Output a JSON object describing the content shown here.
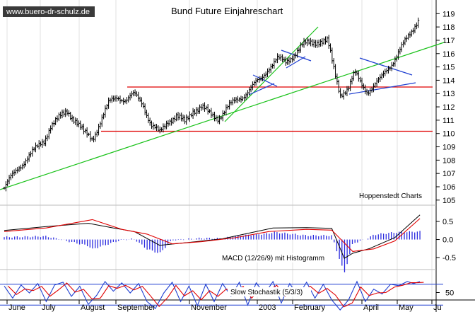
{
  "chart_data": {
    "type": "line",
    "title": "Bund Future Einjahreschart",
    "watermark": "www.buero-dr-schulz.de",
    "source": "Hoppenstedt Charts",
    "months": [
      "June",
      "July",
      "August",
      "September",
      "November",
      "2003",
      "February",
      "April",
      "May",
      "Ju"
    ],
    "price_panel": {
      "yticks": [
        105,
        106,
        107,
        108,
        109,
        110,
        111,
        112,
        113,
        114,
        115,
        116,
        117,
        118,
        119
      ],
      "ylim": [
        104.3,
        119.6
      ],
      "series": [
        {
          "x": 0,
          "y": 105.9
        },
        {
          "x": 1.5,
          "y": 106.6
        },
        {
          "x": 3.5,
          "y": 107.5
        },
        {
          "x": 5.5,
          "y": 108.2
        },
        {
          "x": 7.5,
          "y": 108.8
        },
        {
          "x": 9.5,
          "y": 109.5
        },
        {
          "x": 11,
          "y": 110.6
        },
        {
          "x": 13,
          "y": 111.1
        },
        {
          "x": 15,
          "y": 111.7
        },
        {
          "x": 17,
          "y": 111.0
        },
        {
          "x": 19,
          "y": 110.0
        },
        {
          "x": 21,
          "y": 109.6
        },
        {
          "x": 23,
          "y": 111.0
        },
        {
          "x": 25,
          "y": 112.3
        },
        {
          "x": 27,
          "y": 112.8
        },
        {
          "x": 29,
          "y": 112.5
        },
        {
          "x": 31,
          "y": 112.9
        },
        {
          "x": 33,
          "y": 112.3
        },
        {
          "x": 35,
          "y": 110.6
        },
        {
          "x": 37,
          "y": 110.0
        },
        {
          "x": 39,
          "y": 111.0
        },
        {
          "x": 41,
          "y": 111.3
        },
        {
          "x": 43,
          "y": 110.8
        },
        {
          "x": 45,
          "y": 111.8
        },
        {
          "x": 47,
          "y": 112.0
        },
        {
          "x": 49,
          "y": 111.4
        },
        {
          "x": 51,
          "y": 111.2
        },
        {
          "x": 53,
          "y": 111.9
        },
        {
          "x": 55,
          "y": 112.4
        },
        {
          "x": 57,
          "y": 112.9
        },
        {
          "x": 59,
          "y": 113.5
        },
        {
          "x": 61,
          "y": 114.0
        },
        {
          "x": 63,
          "y": 115.0
        },
        {
          "x": 65,
          "y": 115.6
        },
        {
          "x": 67,
          "y": 115.3
        },
        {
          "x": 69,
          "y": 116.0
        },
        {
          "x": 71,
          "y": 116.6
        },
        {
          "x": 73,
          "y": 116.8
        },
        {
          "x": 75,
          "y": 117.0
        },
        {
          "x": 77,
          "y": 116.9
        },
        {
          "x": 78.5,
          "y": 114.8
        },
        {
          "x": 80,
          "y": 113.0
        },
        {
          "x": 82,
          "y": 113.4
        },
        {
          "x": 83.5,
          "y": 114.5
        },
        {
          "x": 85,
          "y": 113.8
        },
        {
          "x": 86.5,
          "y": 113.2
        },
        {
          "x": 88,
          "y": 113.5
        },
        {
          "x": 89.5,
          "y": 114.0
        },
        {
          "x": 91,
          "y": 114.8
        },
        {
          "x": 93,
          "y": 115.6
        },
        {
          "x": 95,
          "y": 116.6
        },
        {
          "x": 97,
          "y": 117.7
        },
        {
          "x": 98.5,
          "y": 118.6
        }
      ]
    },
    "macd_panel": {
      "label": "MACD (12/26/9) mit Histogramm",
      "yticks": [
        0.5,
        0.0,
        -0.5
      ],
      "ylim": [
        -0.85,
        0.95
      ],
      "macd": [
        {
          "x": 0,
          "y": 0.25
        },
        {
          "x": 10,
          "y": 0.36
        },
        {
          "x": 20,
          "y": 0.45
        },
        {
          "x": 26,
          "y": 0.32
        },
        {
          "x": 31,
          "y": 0.22
        },
        {
          "x": 37,
          "y": -0.16
        },
        {
          "x": 44,
          "y": -0.08
        },
        {
          "x": 52,
          "y": 0.02
        },
        {
          "x": 58,
          "y": 0.17
        },
        {
          "x": 64,
          "y": 0.32
        },
        {
          "x": 72,
          "y": 0.33
        },
        {
          "x": 78,
          "y": 0.31
        },
        {
          "x": 81,
          "y": -0.52
        },
        {
          "x": 83,
          "y": -0.38
        },
        {
          "x": 87,
          "y": -0.25
        },
        {
          "x": 93,
          "y": 0.05
        },
        {
          "x": 99,
          "y": 0.68
        }
      ],
      "signal": [
        {
          "x": 0,
          "y": 0.22
        },
        {
          "x": 10,
          "y": 0.32
        },
        {
          "x": 21,
          "y": 0.55
        },
        {
          "x": 28,
          "y": 0.28
        },
        {
          "x": 34,
          "y": 0.15
        },
        {
          "x": 40,
          "y": -0.12
        },
        {
          "x": 47,
          "y": -0.06
        },
        {
          "x": 55,
          "y": 0.05
        },
        {
          "x": 63,
          "y": 0.22
        },
        {
          "x": 72,
          "y": 0.28
        },
        {
          "x": 78,
          "y": 0.26
        },
        {
          "x": 83,
          "y": -0.33
        },
        {
          "x": 88,
          "y": -0.26
        },
        {
          "x": 93,
          "y": -0.04
        },
        {
          "x": 99,
          "y": 0.58
        }
      ]
    },
    "stoch_panel": {
      "label": "Slow Stochastik (5/3/3)",
      "yticks": [
        50
      ],
      "ylim": [
        0,
        100
      ],
      "reference_lines": [
        80,
        20
      ],
      "k": [
        {
          "x": 0,
          "y": 75
        },
        {
          "x": 2,
          "y": 40
        },
        {
          "x": 4,
          "y": 78
        },
        {
          "x": 6,
          "y": 55
        },
        {
          "x": 8,
          "y": 82
        },
        {
          "x": 10,
          "y": 30
        },
        {
          "x": 12,
          "y": 78
        },
        {
          "x": 14,
          "y": 86
        },
        {
          "x": 16,
          "y": 45
        },
        {
          "x": 18,
          "y": 74
        },
        {
          "x": 20,
          "y": 22
        },
        {
          "x": 22,
          "y": 48
        },
        {
          "x": 24,
          "y": 88
        },
        {
          "x": 26,
          "y": 60
        },
        {
          "x": 28,
          "y": 84
        },
        {
          "x": 30,
          "y": 55
        },
        {
          "x": 32,
          "y": 82
        },
        {
          "x": 34,
          "y": 30
        },
        {
          "x": 36,
          "y": 10
        },
        {
          "x": 38,
          "y": 55
        },
        {
          "x": 40,
          "y": 86
        },
        {
          "x": 42,
          "y": 30
        },
        {
          "x": 44,
          "y": 75
        },
        {
          "x": 46,
          "y": 18
        },
        {
          "x": 48,
          "y": 80
        },
        {
          "x": 50,
          "y": 30
        },
        {
          "x": 52,
          "y": 82
        },
        {
          "x": 54,
          "y": 45
        },
        {
          "x": 56,
          "y": 86
        },
        {
          "x": 58,
          "y": 20
        },
        {
          "x": 60,
          "y": 84
        },
        {
          "x": 62,
          "y": 52
        },
        {
          "x": 64,
          "y": 88
        },
        {
          "x": 66,
          "y": 26
        },
        {
          "x": 68,
          "y": 82
        },
        {
          "x": 70,
          "y": 46
        },
        {
          "x": 72,
          "y": 86
        },
        {
          "x": 74,
          "y": 40
        },
        {
          "x": 76,
          "y": 80
        },
        {
          "x": 78,
          "y": 35
        },
        {
          "x": 80,
          "y": 6
        },
        {
          "x": 82,
          "y": 35
        },
        {
          "x": 84,
          "y": 88
        },
        {
          "x": 86,
          "y": 30
        },
        {
          "x": 88,
          "y": 66
        },
        {
          "x": 90,
          "y": 52
        },
        {
          "x": 92,
          "y": 80
        },
        {
          "x": 94,
          "y": 76
        },
        {
          "x": 96,
          "y": 88
        },
        {
          "x": 97.5,
          "y": 82
        },
        {
          "x": 99,
          "y": 88
        }
      ]
    }
  }
}
